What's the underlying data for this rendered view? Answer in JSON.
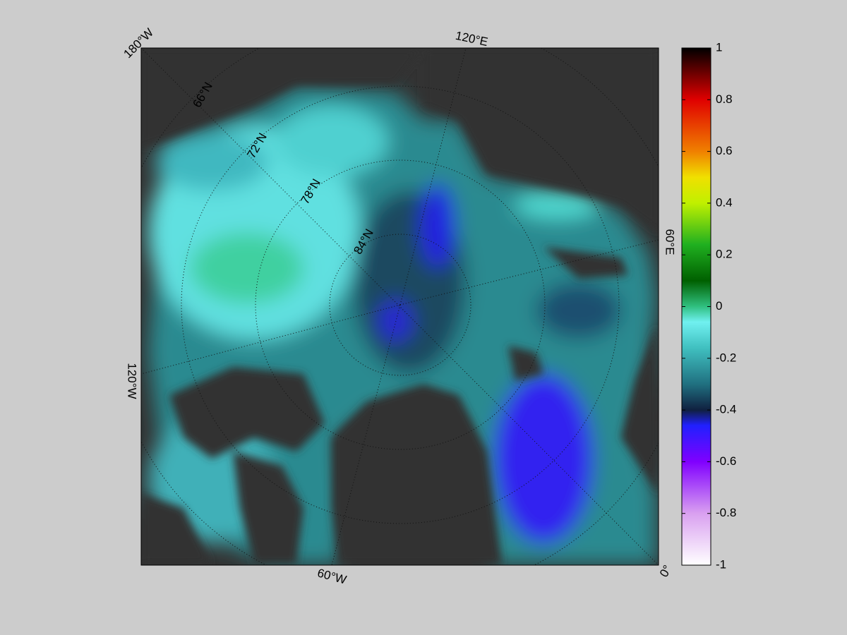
{
  "map": {
    "longitude_labels": [
      "180°W",
      "120°E",
      "60°E",
      "0°",
      "60°W",
      "120°W"
    ],
    "latitude_labels": [
      "66°N",
      "72°N",
      "78°N",
      "84°N"
    ]
  },
  "colorbar": {
    "lim": [
      -1,
      1
    ],
    "ticks": [
      1,
      0.8,
      0.6,
      0.4,
      0.2,
      0,
      -0.2,
      -0.4,
      -0.6,
      -0.8,
      -1
    ]
  }
}
